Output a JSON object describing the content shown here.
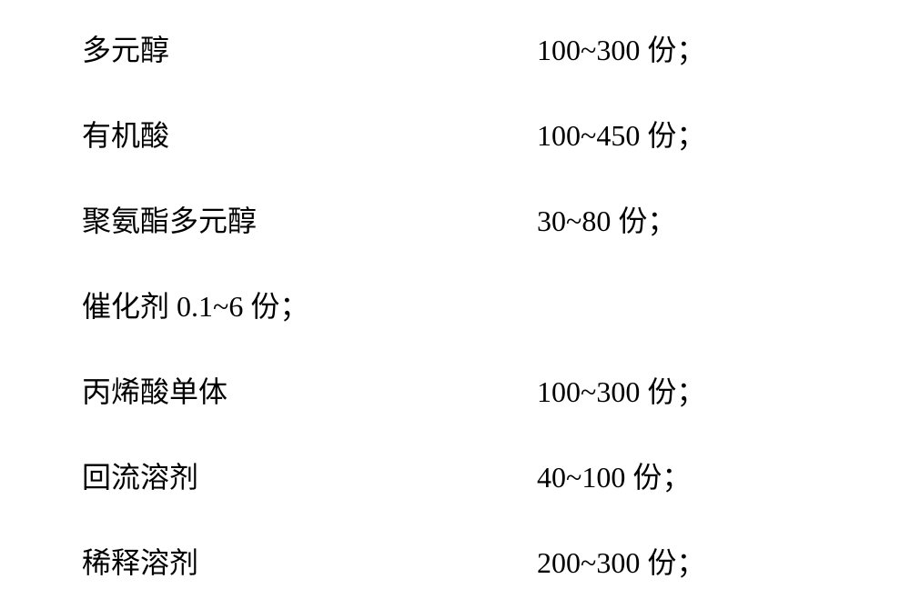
{
  "ingredients": {
    "row1": {
      "label": "多元醇",
      "value": "100~300 份；"
    },
    "row2": {
      "label": "有机酸",
      "value": "100~450 份；"
    },
    "row3": {
      "label": "聚氨酯多元醇",
      "value": "30~80 份；"
    },
    "row4": {
      "text": "催化剂 0.1~6 份；"
    },
    "row5": {
      "label": "丙烯酸单体",
      "value": "100~300 份；"
    },
    "row6": {
      "label": "回流溶剂",
      "value": "40~100 份；"
    },
    "row7": {
      "label": "稀释溶剂",
      "value": "200~300 份；"
    }
  },
  "styling": {
    "font_family": "SimSun",
    "font_size": 32,
    "text_color": "#000000",
    "background_color": "#ffffff",
    "row_gap": 48,
    "label_width": 210,
    "value_margin_left": 290
  }
}
